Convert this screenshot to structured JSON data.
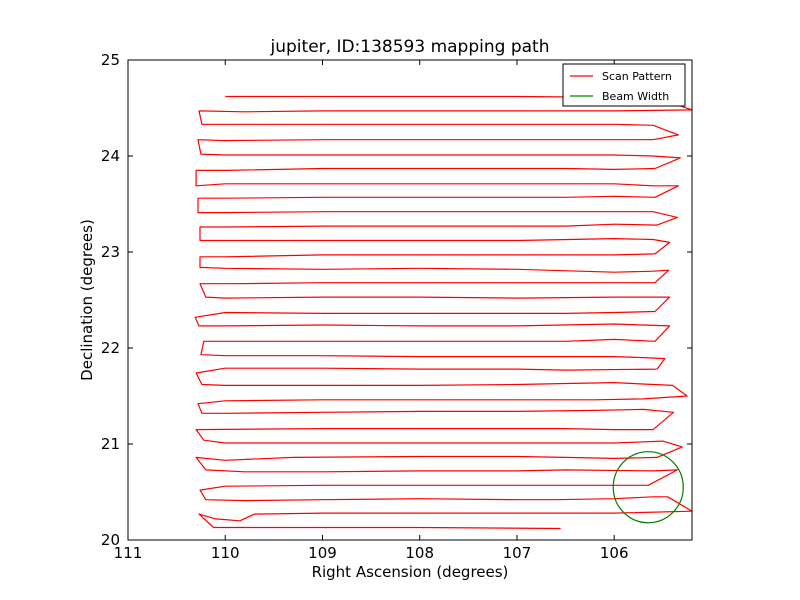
{
  "chart_data": {
    "type": "line",
    "title": "jupiter, ID:138593 mapping path",
    "xlabel": "Right Ascension (degrees)",
    "ylabel": "Declination (degrees)",
    "xlim": [
      111.0,
      105.2
    ],
    "ylim": [
      20.0,
      25.0
    ],
    "x_ticks": [
      111,
      110,
      109,
      108,
      107,
      106
    ],
    "y_ticks": [
      20,
      21,
      22,
      23,
      24,
      25
    ],
    "grid": false,
    "legend_position": "top-right",
    "series": [
      {
        "name": "Scan Pattern",
        "color": "#ff0000",
        "points": [
          [
            106.55,
            20.12
          ],
          [
            108.0,
            20.13
          ],
          [
            109.0,
            20.13
          ],
          [
            109.85,
            20.13
          ],
          [
            110.12,
            20.13
          ],
          [
            110.27,
            20.27
          ],
          [
            110.1,
            20.22
          ],
          [
            109.85,
            20.2
          ],
          [
            109.7,
            20.27
          ],
          [
            109.0,
            20.28
          ],
          [
            108.0,
            20.28
          ],
          [
            107.0,
            20.28
          ],
          [
            106.0,
            20.28
          ],
          [
            105.2,
            20.3
          ],
          [
            105.45,
            20.45
          ],
          [
            105.6,
            20.45
          ],
          [
            106.0,
            20.43
          ],
          [
            106.6,
            20.42
          ],
          [
            107.0,
            20.42
          ],
          [
            108.0,
            20.43
          ],
          [
            109.0,
            20.42
          ],
          [
            109.8,
            20.41
          ],
          [
            110.2,
            20.42
          ],
          [
            110.26,
            20.52
          ],
          [
            110.0,
            20.56
          ],
          [
            109.0,
            20.57
          ],
          [
            108.0,
            20.57
          ],
          [
            107.0,
            20.57
          ],
          [
            106.0,
            20.57
          ],
          [
            105.65,
            20.57
          ],
          [
            105.35,
            20.73
          ],
          [
            105.6,
            20.72
          ],
          [
            106.5,
            20.73
          ],
          [
            107.0,
            20.72
          ],
          [
            108.0,
            20.72
          ],
          [
            109.0,
            20.71
          ],
          [
            109.8,
            20.71
          ],
          [
            110.2,
            20.73
          ],
          [
            110.3,
            20.86
          ],
          [
            110.0,
            20.83
          ],
          [
            109.3,
            20.86
          ],
          [
            108.0,
            20.87
          ],
          [
            107.0,
            20.87
          ],
          [
            106.5,
            20.86
          ],
          [
            106.0,
            20.85
          ],
          [
            105.56,
            20.86
          ],
          [
            105.3,
            20.97
          ],
          [
            105.5,
            21.03
          ],
          [
            106.0,
            21.01
          ],
          [
            107.0,
            21.01
          ],
          [
            108.0,
            21.01
          ],
          [
            109.0,
            21.01
          ],
          [
            110.0,
            21.01
          ],
          [
            110.22,
            21.04
          ],
          [
            110.3,
            21.15
          ],
          [
            109.0,
            21.16
          ],
          [
            108.0,
            21.16
          ],
          [
            107.0,
            21.16
          ],
          [
            106.5,
            21.16
          ],
          [
            106.0,
            21.15
          ],
          [
            105.6,
            21.15
          ],
          [
            105.39,
            21.33
          ],
          [
            105.7,
            21.36
          ],
          [
            106.2,
            21.35
          ],
          [
            107.0,
            21.34
          ],
          [
            108.0,
            21.34
          ],
          [
            109.0,
            21.33
          ],
          [
            110.0,
            21.32
          ],
          [
            110.24,
            21.32
          ],
          [
            110.28,
            21.42
          ],
          [
            110.0,
            21.45
          ],
          [
            109.0,
            21.46
          ],
          [
            108.0,
            21.46
          ],
          [
            107.0,
            21.46
          ],
          [
            106.2,
            21.46
          ],
          [
            105.7,
            21.47
          ],
          [
            105.25,
            21.5
          ],
          [
            105.4,
            21.61
          ],
          [
            106.0,
            21.64
          ],
          [
            106.5,
            21.63
          ],
          [
            107.0,
            21.62
          ],
          [
            108.0,
            21.61
          ],
          [
            109.0,
            21.61
          ],
          [
            110.0,
            21.61
          ],
          [
            110.24,
            21.62
          ],
          [
            110.3,
            21.74
          ],
          [
            110.0,
            21.79
          ],
          [
            109.0,
            21.79
          ],
          [
            108.0,
            21.78
          ],
          [
            107.0,
            21.78
          ],
          [
            106.5,
            21.77
          ],
          [
            105.56,
            21.78
          ],
          [
            105.48,
            21.89
          ],
          [
            105.7,
            21.9
          ],
          [
            106.0,
            21.91
          ],
          [
            107.0,
            21.91
          ],
          [
            108.0,
            21.91
          ],
          [
            109.0,
            21.92
          ],
          [
            110.0,
            21.92
          ],
          [
            110.25,
            21.93
          ],
          [
            110.22,
            22.07
          ],
          [
            110.0,
            22.07
          ],
          [
            109.0,
            22.07
          ],
          [
            108.0,
            22.07
          ],
          [
            107.0,
            22.07
          ],
          [
            106.5,
            22.07
          ],
          [
            106.0,
            22.09
          ],
          [
            105.58,
            22.07
          ],
          [
            105.43,
            22.23
          ],
          [
            106.0,
            22.25
          ],
          [
            107.0,
            22.23
          ],
          [
            108.0,
            22.23
          ],
          [
            109.0,
            22.24
          ],
          [
            110.0,
            22.23
          ],
          [
            110.27,
            22.23
          ],
          [
            110.31,
            22.32
          ],
          [
            110.0,
            22.37
          ],
          [
            109.0,
            22.36
          ],
          [
            108.0,
            22.36
          ],
          [
            107.0,
            22.36
          ],
          [
            106.5,
            22.36
          ],
          [
            106.0,
            22.37
          ],
          [
            105.58,
            22.38
          ],
          [
            105.43,
            22.53
          ],
          [
            106.0,
            22.53
          ],
          [
            107.0,
            22.52
          ],
          [
            108.0,
            22.53
          ],
          [
            109.0,
            22.53
          ],
          [
            110.0,
            22.52
          ],
          [
            110.2,
            22.53
          ],
          [
            110.26,
            22.67
          ],
          [
            109.9,
            22.67
          ],
          [
            109.0,
            22.68
          ],
          [
            108.0,
            22.68
          ],
          [
            107.0,
            22.68
          ],
          [
            106.5,
            22.68
          ],
          [
            105.95,
            22.68
          ],
          [
            105.58,
            22.68
          ],
          [
            105.44,
            22.81
          ],
          [
            105.6,
            22.8
          ],
          [
            106.0,
            22.79
          ],
          [
            107.0,
            22.82
          ],
          [
            108.0,
            22.83
          ],
          [
            109.0,
            22.82
          ],
          [
            110.0,
            22.83
          ],
          [
            110.26,
            22.84
          ],
          [
            110.26,
            22.95
          ],
          [
            110.0,
            22.95
          ],
          [
            109.0,
            22.97
          ],
          [
            108.0,
            22.97
          ],
          [
            107.0,
            22.97
          ],
          [
            106.5,
            22.97
          ],
          [
            106.0,
            22.97
          ],
          [
            105.58,
            22.98
          ],
          [
            105.43,
            23.1
          ],
          [
            105.6,
            23.13
          ],
          [
            106.0,
            23.14
          ],
          [
            107.0,
            23.12
          ],
          [
            108.0,
            23.12
          ],
          [
            109.0,
            23.12
          ],
          [
            110.0,
            23.12
          ],
          [
            110.26,
            23.12
          ],
          [
            110.26,
            23.26
          ],
          [
            110.0,
            23.26
          ],
          [
            109.0,
            23.27
          ],
          [
            108.0,
            23.27
          ],
          [
            107.0,
            23.27
          ],
          [
            106.5,
            23.27
          ],
          [
            106.0,
            23.29
          ],
          [
            105.56,
            23.28
          ],
          [
            105.35,
            23.36
          ],
          [
            105.6,
            23.42
          ],
          [
            106.0,
            23.42
          ],
          [
            107.0,
            23.42
          ],
          [
            108.0,
            23.42
          ],
          [
            109.0,
            23.42
          ],
          [
            110.0,
            23.41
          ],
          [
            110.28,
            23.41
          ],
          [
            110.28,
            23.56
          ],
          [
            110.0,
            23.56
          ],
          [
            109.0,
            23.57
          ],
          [
            108.0,
            23.57
          ],
          [
            107.0,
            23.57
          ],
          [
            106.5,
            23.57
          ],
          [
            106.0,
            23.58
          ],
          [
            105.58,
            23.57
          ],
          [
            105.34,
            23.69
          ],
          [
            105.6,
            23.69
          ],
          [
            106.0,
            23.71
          ],
          [
            107.0,
            23.71
          ],
          [
            108.0,
            23.71
          ],
          [
            109.0,
            23.71
          ],
          [
            110.0,
            23.71
          ],
          [
            110.3,
            23.69
          ],
          [
            110.3,
            23.85
          ],
          [
            110.0,
            23.85
          ],
          [
            109.0,
            23.87
          ],
          [
            108.0,
            23.87
          ],
          [
            107.0,
            23.87
          ],
          [
            106.5,
            23.87
          ],
          [
            106.0,
            23.86
          ],
          [
            105.58,
            23.87
          ],
          [
            105.32,
            23.98
          ],
          [
            105.6,
            24.0
          ],
          [
            106.0,
            24.01
          ],
          [
            107.0,
            24.01
          ],
          [
            108.0,
            24.01
          ],
          [
            109.0,
            24.01
          ],
          [
            110.0,
            24.01
          ],
          [
            110.25,
            24.02
          ],
          [
            110.28,
            24.17
          ],
          [
            110.0,
            24.16
          ],
          [
            109.0,
            24.17
          ],
          [
            108.0,
            24.17
          ],
          [
            107.0,
            24.17
          ],
          [
            106.5,
            24.17
          ],
          [
            106.0,
            24.17
          ],
          [
            105.6,
            24.17
          ],
          [
            105.34,
            24.22
          ],
          [
            105.6,
            24.32
          ],
          [
            106.0,
            24.33
          ],
          [
            107.0,
            24.33
          ],
          [
            108.0,
            24.33
          ],
          [
            109.0,
            24.33
          ],
          [
            110.0,
            24.33
          ],
          [
            110.24,
            24.33
          ],
          [
            110.27,
            24.47
          ],
          [
            109.8,
            24.46
          ],
          [
            109.0,
            24.47
          ],
          [
            108.0,
            24.47
          ],
          [
            107.0,
            24.47
          ],
          [
            106.5,
            24.47
          ],
          [
            106.0,
            24.47
          ],
          [
            105.2,
            24.48
          ],
          [
            105.55,
            24.6
          ],
          [
            106.0,
            24.61
          ],
          [
            107.0,
            24.62
          ],
          [
            108.0,
            24.62
          ],
          [
            109.0,
            24.62
          ],
          [
            110.0,
            24.62
          ]
        ]
      },
      {
        "name": "Beam Width",
        "color": "#008000",
        "shape": "circle",
        "center": [
          105.65,
          20.55
        ],
        "radius_ra": 0.36,
        "radius_dec": 0.37
      }
    ]
  }
}
